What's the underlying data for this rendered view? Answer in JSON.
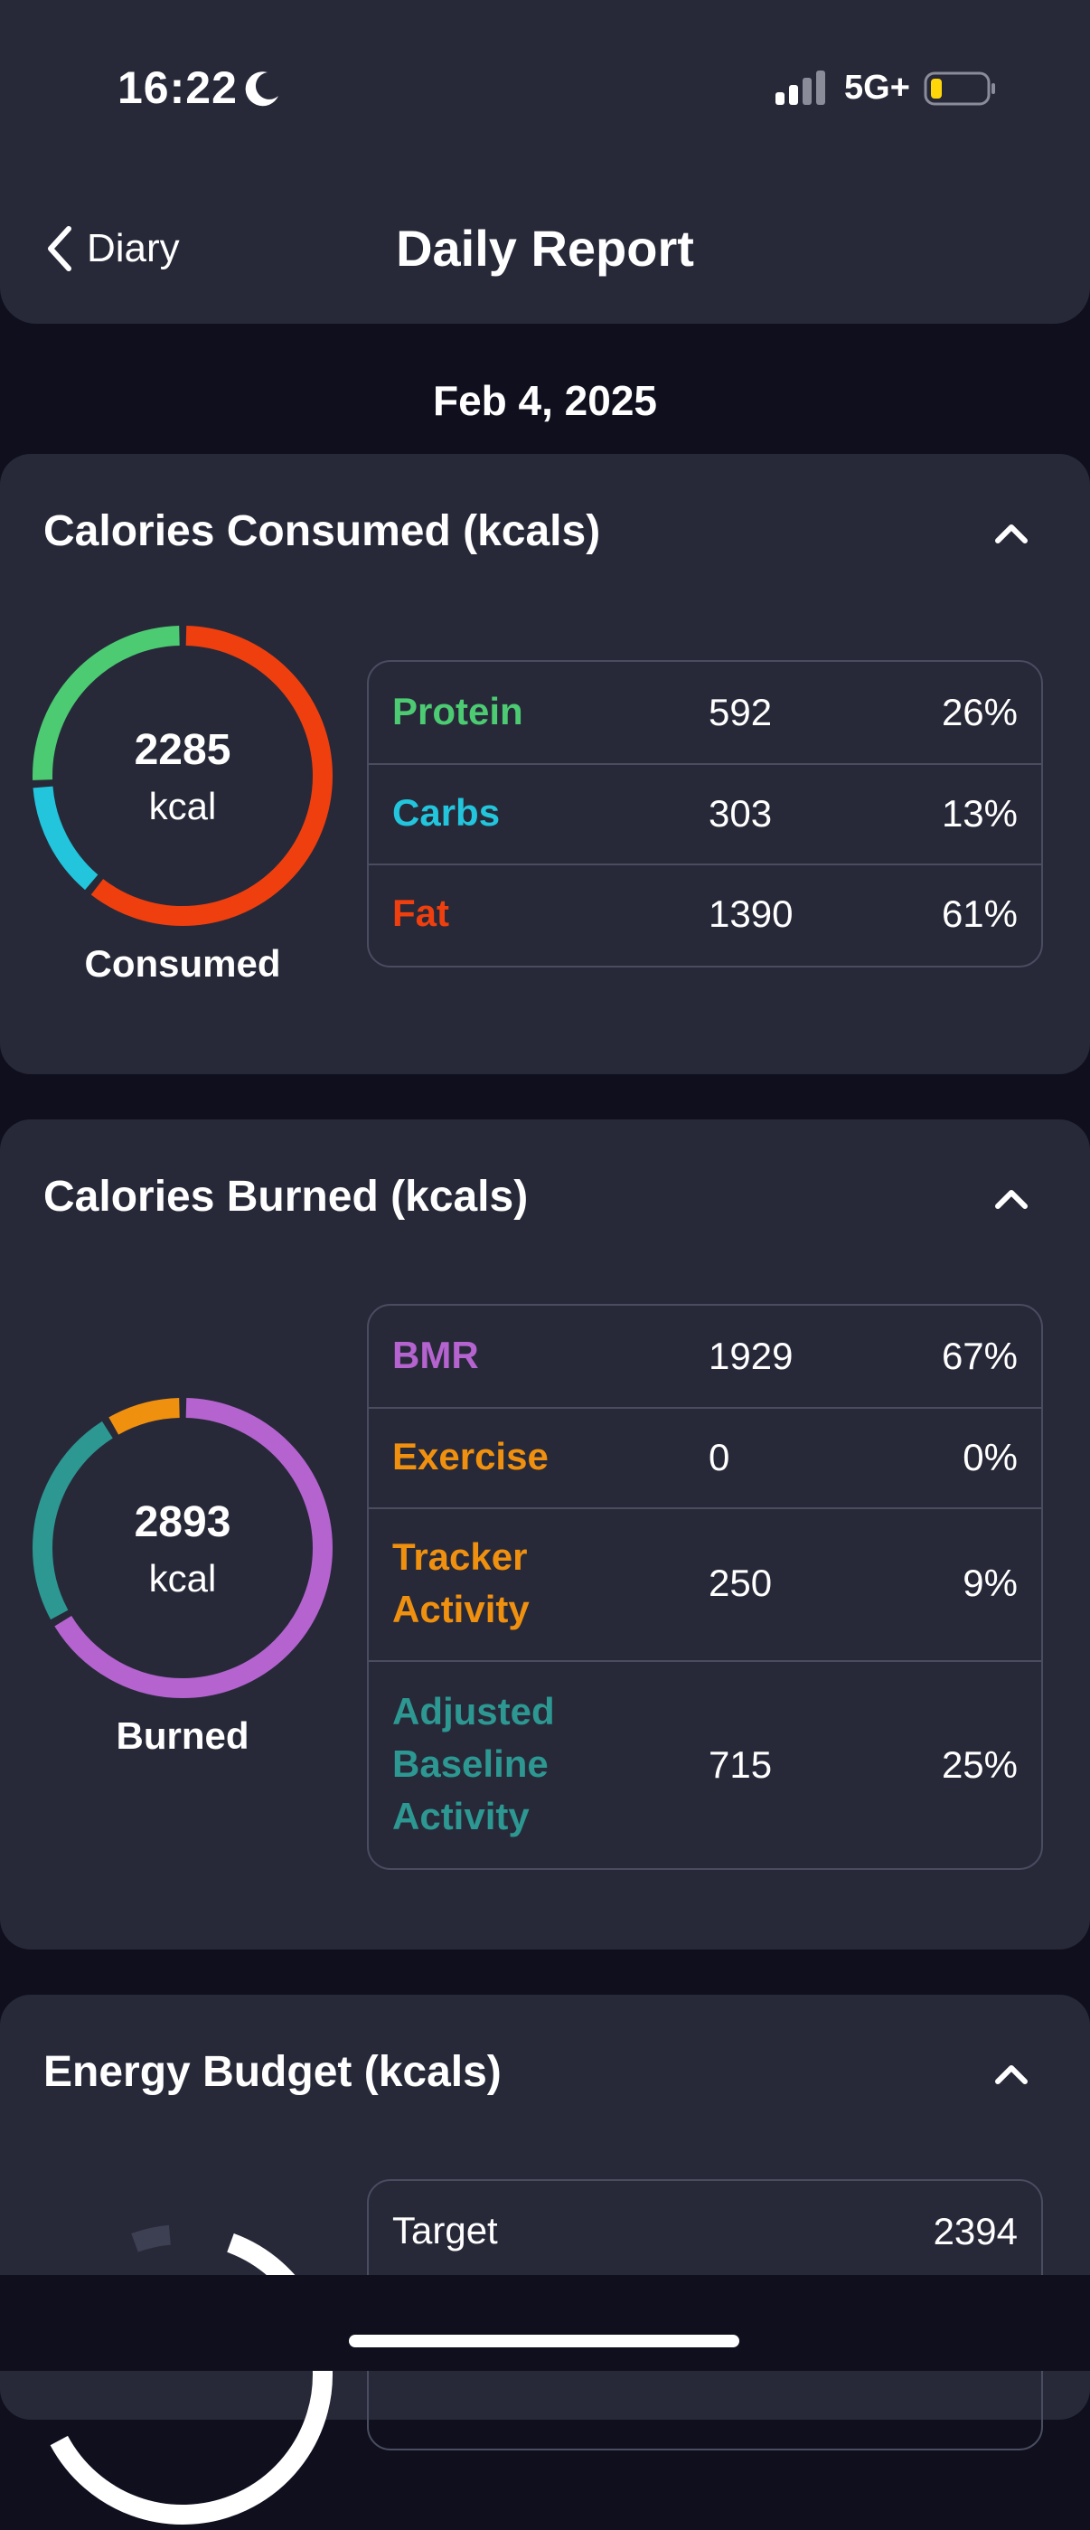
{
  "status_bar": {
    "time": "16:22",
    "network": "5G+"
  },
  "nav": {
    "back_label": "Diary",
    "title": "Daily Report"
  },
  "date": "Feb 4, 2025",
  "colors": {
    "protein": "#4ccb72",
    "carbs": "#22c5dc",
    "fat": "#ef3f0e",
    "bmr": "#b463cf",
    "exercise": "#f0900f",
    "tracker": "#f0900f",
    "adjusted": "#2d9791",
    "card_bg": "#272939",
    "page_bg": "#0f0f1e"
  },
  "consumed": {
    "title": "Calories Consumed (kcals)",
    "total": "2285",
    "unit": "kcal",
    "caption": "Consumed",
    "rows": [
      {
        "name": "Protein",
        "value": "592",
        "pct": "26%"
      },
      {
        "name": "Carbs",
        "value": "303",
        "pct": "13%"
      },
      {
        "name": "Fat",
        "value": "1390",
        "pct": "61%"
      }
    ]
  },
  "burned": {
    "title": "Calories Burned (kcals)",
    "total": "2893",
    "unit": "kcal",
    "caption": "Burned",
    "rows": [
      {
        "name": "BMR",
        "value": "1929",
        "pct": "67%"
      },
      {
        "name": "Exercise",
        "value": "0",
        "pct": "0%"
      },
      {
        "name": "Tracker Activity",
        "value": "250",
        "pct": "9%"
      },
      {
        "name": "Adjusted Baseline Activity",
        "value": "715",
        "pct": "25%"
      }
    ]
  },
  "budget": {
    "title": "Energy Budget (kcals)",
    "rows": [
      {
        "name": "Target",
        "value": "2394"
      }
    ]
  }
}
